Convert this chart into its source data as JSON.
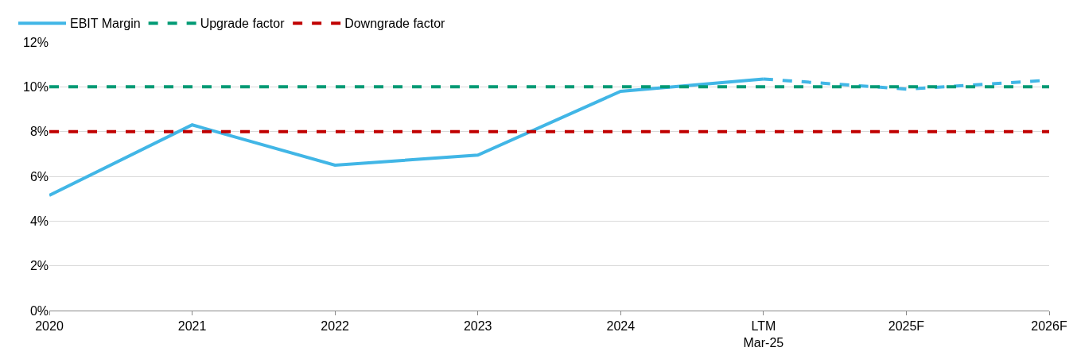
{
  "chart_data": {
    "type": "line",
    "categories": [
      "2020",
      "2021",
      "2022",
      "2023",
      "2024",
      "LTM\nMar-25",
      "2025F",
      "2026F"
    ],
    "series": [
      {
        "name": "EBIT Margin",
        "color": "#41b6e6",
        "line_style": "solid",
        "values": [
          5.15,
          8.3,
          6.5,
          6.95,
          9.8,
          10.35,
          null,
          null
        ]
      },
      {
        "color": "#41b6e6",
        "line_style": "dashed",
        "values": [
          null,
          null,
          null,
          null,
          null,
          10.35,
          9.9,
          10.3
        ]
      },
      {
        "name": "Upgrade factor",
        "color": "#009a74",
        "line_style": "dashed",
        "values": [
          10,
          10,
          10,
          10,
          10,
          10,
          10,
          10
        ]
      },
      {
        "name": "Downgrade factor",
        "color": "#c00000",
        "line_style": "dashed",
        "values": [
          8,
          8,
          8,
          8,
          8,
          8,
          8,
          8
        ]
      }
    ],
    "ylim": [
      0,
      12
    ],
    "yticks": [
      {
        "value": 0,
        "label": "0%"
      },
      {
        "value": 2,
        "label": "2%"
      },
      {
        "value": 4,
        "label": "4%"
      },
      {
        "value": 6,
        "label": "6%"
      },
      {
        "value": 8,
        "label": "8%"
      },
      {
        "value": 10,
        "label": "10%"
      },
      {
        "value": 12,
        "label": "12%"
      }
    ],
    "grid": "y",
    "legend": "top left",
    "marker": "none"
  }
}
